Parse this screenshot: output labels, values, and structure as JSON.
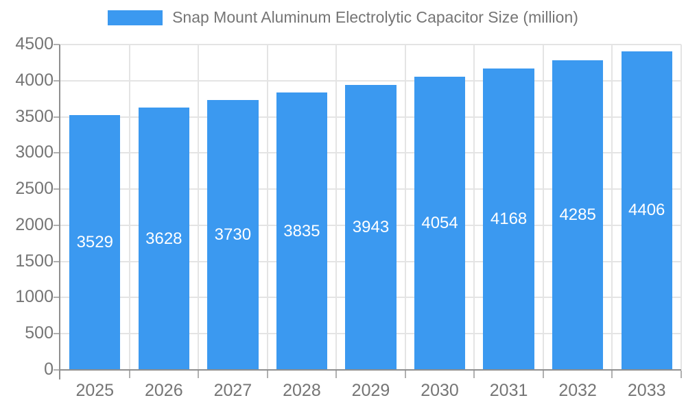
{
  "legend": {
    "items": [
      {
        "label": "Snap Mount Aluminum Electrolytic Capacitor Size (million)",
        "color": "#3b99f0"
      }
    ]
  },
  "chart_data": {
    "type": "bar",
    "title": "Snap Mount Aluminum Electrolytic Capacitor Size (million)",
    "categories": [
      "2025",
      "2026",
      "2027",
      "2028",
      "2029",
      "2030",
      "2031",
      "2032",
      "2033"
    ],
    "values": [
      3529,
      3628,
      3730,
      3835,
      3943,
      4054,
      4168,
      4285,
      4406
    ],
    "xlabel": "",
    "ylabel": "",
    "ylim": [
      0,
      4500
    ],
    "yticks": [
      0,
      500,
      1000,
      1500,
      2000,
      2500,
      3000,
      3500,
      4000,
      4500
    ],
    "grid": true,
    "legend_position": "top-center",
    "value_labels": "centered-white-inside-bars"
  },
  "colors": {
    "background": "#ffffff",
    "bar": "#3b99f0",
    "axis_line": "#8f8f8f",
    "tick": "#b0b0b0",
    "grid": "#e4e4e4",
    "axis_label": "#757575",
    "legend_text": "#757575",
    "value_label": "#ffffff"
  }
}
